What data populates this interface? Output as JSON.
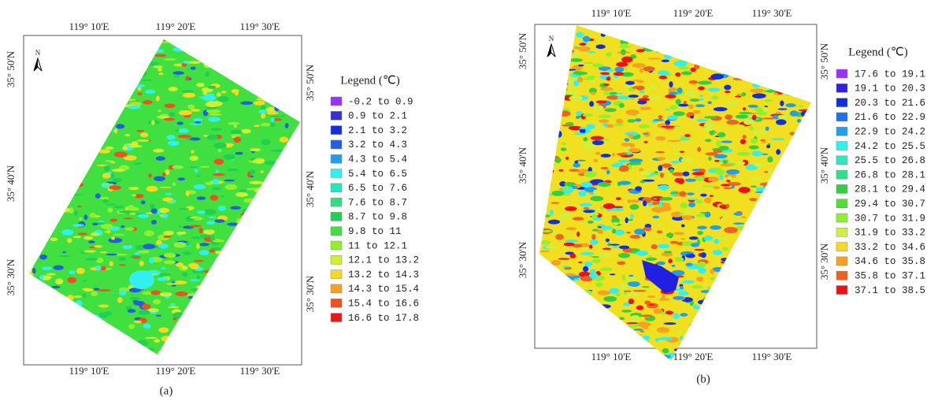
{
  "panels": [
    {
      "caption": "(a)",
      "north": "N",
      "legend_title": "Legend (℃)",
      "top_ticks": [
        "119° 10'E",
        "119° 20'E",
        "119° 30'E"
      ],
      "bottom_ticks": [
        "119° 10'E",
        "119° 20'E",
        "119° 30'E"
      ],
      "left_ticks": [
        "35° 50'N",
        "35° 40'N",
        "35° 30'N"
      ],
      "right_ticks": [
        "35° 50'N",
        "35° 40'N",
        "35° 30'N"
      ],
      "legend": [
        {
          "label": "-0.2 to 0.9",
          "color": "#9b30ff"
        },
        {
          "label": "0.9 to 2.1",
          "color": "#3a2fd0"
        },
        {
          "label": "2.1 to 3.2",
          "color": "#1030e0"
        },
        {
          "label": "3.2 to 4.3",
          "color": "#2060e0"
        },
        {
          "label": "4.3 to 5.4",
          "color": "#20a0e8"
        },
        {
          "label": "5.4 to 6.5",
          "color": "#30f0f0"
        },
        {
          "label": "6.5 to 7.6",
          "color": "#20e8c0"
        },
        {
          "label": "7.6 to 8.7",
          "color": "#30e080"
        },
        {
          "label": "8.7 to 9.8",
          "color": "#20d050"
        },
        {
          "label": "9.8 to 11",
          "color": "#40e040"
        },
        {
          "label": "11 to 12.1",
          "color": "#90f030"
        },
        {
          "label": "12.1 to 13.2",
          "color": "#d0f030"
        },
        {
          "label": "13.2 to 14.3",
          "color": "#f8d820"
        },
        {
          "label": "14.3 to 15.4",
          "color": "#f8a020"
        },
        {
          "label": "15.4 to 16.6",
          "color": "#f05020"
        },
        {
          "label": "16.6 to 17.8",
          "color": "#e81818"
        }
      ]
    },
    {
      "caption": "(b)",
      "north": "N",
      "legend_title": "Legend (℃)",
      "top_ticks": [
        "119° 10'E",
        "119° 20'E",
        "119° 30'E"
      ],
      "bottom_ticks": [
        "119° 10'E",
        "119° 20'E",
        "119° 30'E"
      ],
      "left_ticks": [
        "35° 50'N",
        "35° 40'N",
        "35° 30'N"
      ],
      "right_ticks": [
        "35° 50'N",
        "35° 40'N",
        "35° 30'N"
      ],
      "legend": [
        {
          "label": "17.6 to 19.1",
          "color": "#9b30ff"
        },
        {
          "label": "19.1 to 20.3",
          "color": "#3020e8"
        },
        {
          "label": "20.3 to 21.6",
          "color": "#1030e0"
        },
        {
          "label": "21.6 to 22.9",
          "color": "#2070f0"
        },
        {
          "label": "22.9 to 24.2",
          "color": "#20a0e8"
        },
        {
          "label": "24.2 to 25.5",
          "color": "#30f0f0"
        },
        {
          "label": "25.5 to 26.8",
          "color": "#30e8c0"
        },
        {
          "label": "26.8 to 28.1",
          "color": "#30e090"
        },
        {
          "label": "28.1 to 29.4",
          "color": "#30d040"
        },
        {
          "label": "29.4 to 30.7",
          "color": "#50e030"
        },
        {
          "label": "30.7 to 31.9",
          "color": "#90f030"
        },
        {
          "label": "31.9 to 33.2",
          "color": "#d0f040"
        },
        {
          "label": "33.2 to 34.6",
          "color": "#f8d820"
        },
        {
          "label": "34.6 to 35.8",
          "color": "#f8a020"
        },
        {
          "label": "35.8 to 37.1",
          "color": "#f06020"
        },
        {
          "label": "37.1 to 38.5",
          "color": "#f01010"
        }
      ]
    }
  ]
}
